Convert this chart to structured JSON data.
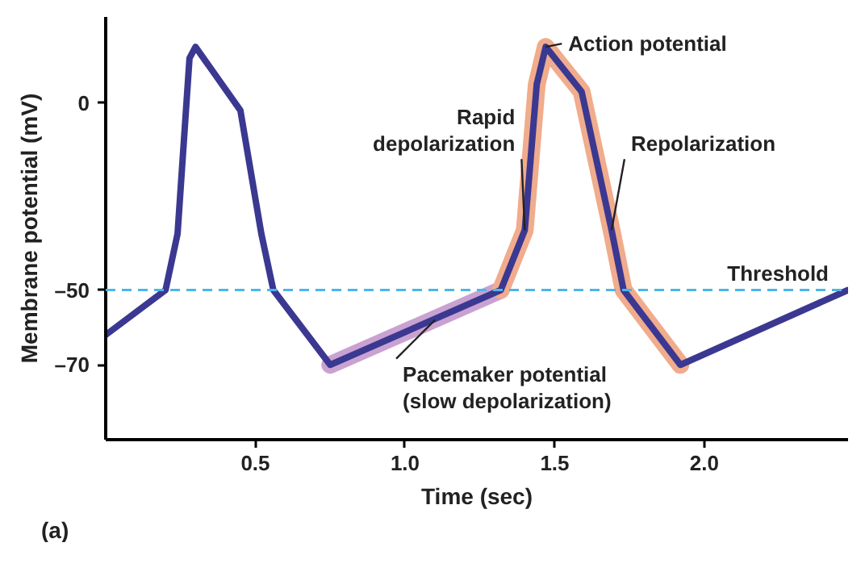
{
  "chart_data": {
    "type": "line",
    "xlabel": "Time (sec)",
    "ylabel": "Membrane potential (mV)",
    "xlim": [
      0,
      2.48
    ],
    "ylim": [
      -90,
      23
    ],
    "xticks": [
      0.5,
      {
        "value": 1,
        "label": "1.0"
      },
      1.5,
      {
        "value": 2,
        "label": "2.0"
      }
    ],
    "yticks": [
      {
        "value": -70,
        "label": "–70"
      },
      {
        "value": -50,
        "label": "–50"
      },
      0
    ],
    "line_style": "solid",
    "series": [
      {
        "color": "#c9a2d2",
        "x": [
          0.75,
          1.32
        ],
        "values": [
          -70,
          -50
        ]
      },
      {
        "color": "#f0ac8c",
        "x": [
          1.32,
          1.4,
          1.44,
          1.47,
          1.59,
          1.69,
          1.73,
          1.92
        ],
        "values": [
          -50,
          -34,
          5,
          15,
          3,
          -34,
          -50,
          -70
        ]
      },
      {
        "color": "#3b3891",
        "x": [
          0,
          0.2,
          0.24,
          0.28,
          0.3,
          0.45,
          0.52,
          0.56,
          0.75,
          1.32,
          1.4,
          1.44,
          1.47,
          1.59,
          1.69,
          1.73,
          1.92,
          2.48
        ],
        "values": [
          -62,
          -50,
          -35,
          12,
          15,
          -2,
          -35,
          -50,
          -70,
          -50,
          -34,
          5,
          15,
          3,
          -34,
          -50,
          -70,
          -50
        ]
      }
    ],
    "ref_lines": [
      {
        "axis": "y",
        "value": -50,
        "label": "Threshold",
        "color": "#4bb6ea",
        "line_style": "dashed"
      }
    ],
    "annotations": [
      {
        "text": "Action potential",
        "x": 1.47,
        "y": 15
      },
      {
        "text": "Rapid\ndepolarization",
        "x": 1.4,
        "y": -34
      },
      {
        "text": "Repolarization",
        "x": 1.69,
        "y": -34
      },
      {
        "text": "Pacemaker potential\n(slow depolarization)",
        "x": 1.1,
        "y": -58
      },
      "(a)"
    ]
  }
}
